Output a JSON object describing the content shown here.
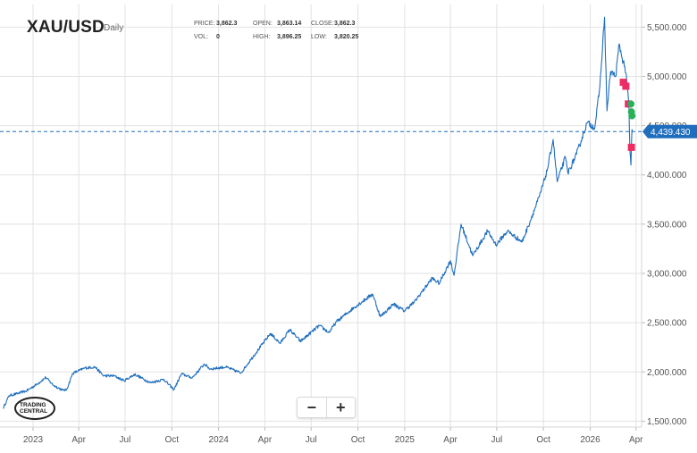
{
  "header": {
    "symbol": "XAU/USD",
    "interval": "Daily",
    "price_label": "PRICE:",
    "price_value": "3,862.3",
    "open_label": "OPEN:",
    "open_value": "3,863.14",
    "close_label": "CLOSE:",
    "close_value": "3,862.3",
    "vol_label": "VOL:",
    "vol_value": "0",
    "high_label": "HIGH:",
    "high_value": "3,896.25",
    "low_label": "LOW:",
    "low_value": "3,820.25"
  },
  "zoom": {
    "minus": "−",
    "plus": "+"
  },
  "logo": {
    "line1": "TRADING",
    "line2": "CENTRAL"
  },
  "colors": {
    "line": "#1f6ebd",
    "grid": "#e2e2e2",
    "current_price_bg": "#1f6ebd",
    "sell_marker": "#ee2b63",
    "buy_marker": "#2ab05a"
  },
  "chart_data": {
    "type": "line",
    "title": "XAU/USD",
    "xlabel": "",
    "ylabel": "",
    "x_ticks": [
      {
        "date": "2023-01-01",
        "label": "2023"
      },
      {
        "date": "2023-04-01",
        "label": "Apr"
      },
      {
        "date": "2023-07-01",
        "label": "Jul"
      },
      {
        "date": "2023-10-01",
        "label": "Oct"
      },
      {
        "date": "2024-01-01",
        "label": "2024"
      },
      {
        "date": "2024-04-01",
        "label": "Apr"
      },
      {
        "date": "2024-07-01",
        "label": "Jul"
      },
      {
        "date": "2024-10-01",
        "label": "Oct"
      },
      {
        "date": "2025-01-01",
        "label": "2025"
      },
      {
        "date": "2025-04-01",
        "label": "Apr"
      },
      {
        "date": "2025-07-01",
        "label": "Jul"
      },
      {
        "date": "2025-10-01",
        "label": "Oct"
      },
      {
        "date": "2026-01-01",
        "label": "2026"
      },
      {
        "date": "2026-04-01",
        "label": "Apr"
      }
    ],
    "y_ticks": [
      {
        "value": 1500,
        "label": "1,500.000"
      },
      {
        "value": 2000,
        "label": "2,000.000"
      },
      {
        "value": 2500,
        "label": "2,500.000"
      },
      {
        "value": 3000,
        "label": "3,000.000"
      },
      {
        "value": 3500,
        "label": "3,500.000"
      },
      {
        "value": 4000,
        "label": "4,000.000"
      },
      {
        "value": 4500,
        "label": "4,500.000"
      },
      {
        "value": 5000,
        "label": "5,000.000"
      },
      {
        "value": 5500,
        "label": "5,500.000"
      }
    ],
    "xlim": [
      "2022-10-28",
      "2026-04-12"
    ],
    "ylim": [
      1440,
      5730
    ],
    "current_price": {
      "value": 4439.43,
      "label": "4,439.430"
    },
    "grid": true,
    "series": [
      {
        "points": [
          [
            "2022-11-03",
            1630
          ],
          [
            "2022-11-15",
            1760
          ],
          [
            "2022-12-01",
            1780
          ],
          [
            "2022-12-20",
            1810
          ],
          [
            "2023-01-10",
            1880
          ],
          [
            "2023-01-26",
            1945
          ],
          [
            "2023-02-10",
            1865
          ],
          [
            "2023-02-28",
            1815
          ],
          [
            "2023-03-08",
            1818
          ],
          [
            "2023-03-20",
            1985
          ],
          [
            "2023-04-13",
            2040
          ],
          [
            "2023-05-03",
            2050
          ],
          [
            "2023-05-20",
            1960
          ],
          [
            "2023-06-10",
            1960
          ],
          [
            "2023-06-29",
            1910
          ],
          [
            "2023-07-20",
            1975
          ],
          [
            "2023-08-20",
            1890
          ],
          [
            "2023-09-15",
            1925
          ],
          [
            "2023-10-05",
            1820
          ],
          [
            "2023-10-20",
            1980
          ],
          [
            "2023-11-10",
            1940
          ],
          [
            "2023-12-04",
            2080
          ],
          [
            "2023-12-15",
            2030
          ],
          [
            "2024-01-15",
            2050
          ],
          [
            "2024-02-14",
            1990
          ],
          [
            "2024-03-05",
            2130
          ],
          [
            "2024-04-12",
            2390
          ],
          [
            "2024-05-01",
            2290
          ],
          [
            "2024-05-20",
            2430
          ],
          [
            "2024-06-10",
            2310
          ],
          [
            "2024-07-17",
            2470
          ],
          [
            "2024-08-05",
            2400
          ],
          [
            "2024-08-20",
            2510
          ],
          [
            "2024-09-25",
            2660
          ],
          [
            "2024-10-30",
            2790
          ],
          [
            "2024-11-14",
            2560
          ],
          [
            "2024-12-10",
            2690
          ],
          [
            "2024-12-31",
            2620
          ],
          [
            "2025-01-20",
            2710
          ],
          [
            "2025-02-24",
            2950
          ],
          [
            "2025-03-10",
            2900
          ],
          [
            "2025-04-01",
            3130
          ],
          [
            "2025-04-08",
            2980
          ],
          [
            "2025-04-22",
            3500
          ],
          [
            "2025-05-15",
            3180
          ],
          [
            "2025-06-13",
            3430
          ],
          [
            "2025-06-30",
            3290
          ],
          [
            "2025-07-22",
            3430
          ],
          [
            "2025-08-20",
            3320
          ],
          [
            "2025-09-01",
            3480
          ],
          [
            "2025-09-23",
            3780
          ],
          [
            "2025-10-08",
            4040
          ],
          [
            "2025-10-20",
            4360
          ],
          [
            "2025-10-28",
            3930
          ],
          [
            "2025-11-13",
            4180
          ],
          [
            "2025-11-18",
            4020
          ],
          [
            "2025-12-05",
            4210
          ],
          [
            "2025-12-26",
            4530
          ],
          [
            "2026-01-10",
            4480
          ],
          [
            "2026-01-20",
            4900
          ],
          [
            "2026-01-29",
            5600
          ],
          [
            "2026-02-03",
            4650
          ],
          [
            "2026-02-10",
            5050
          ],
          [
            "2026-02-20",
            5000
          ],
          [
            "2026-02-27",
            5330
          ],
          [
            "2026-03-04",
            5200
          ],
          [
            "2026-03-10",
            5100
          ],
          [
            "2026-03-15",
            4900
          ],
          [
            "2026-03-18",
            4700
          ],
          [
            "2026-03-20",
            4250
          ],
          [
            "2026-03-22",
            4100
          ],
          [
            "2026-03-24",
            4460
          ],
          [
            "2026-03-26",
            4440
          ]
        ]
      }
    ],
    "markers": [
      {
        "date": "2026-03-07",
        "value": 4940,
        "kind": "sell"
      },
      {
        "date": "2026-03-12",
        "value": 4900,
        "kind": "sell"
      },
      {
        "date": "2026-03-17",
        "value": 4720,
        "kind": "sell"
      },
      {
        "date": "2026-03-23",
        "value": 4280,
        "kind": "sell"
      },
      {
        "date": "2026-03-22",
        "value": 4720,
        "kind": "buy"
      },
      {
        "date": "2026-03-23",
        "value": 4640,
        "kind": "buy"
      },
      {
        "date": "2026-03-24",
        "value": 4600,
        "kind": "buy"
      }
    ]
  }
}
